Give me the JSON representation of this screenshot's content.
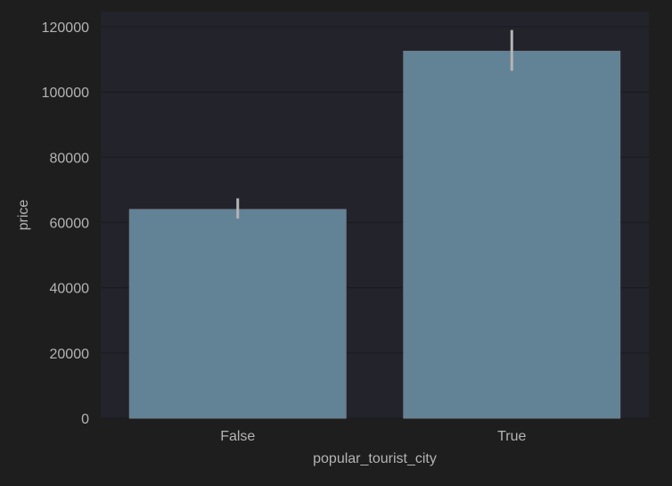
{
  "chart_data": {
    "type": "bar",
    "title": "",
    "xlabel": "popular_tourist_city",
    "ylabel": "price",
    "categories": [
      "False",
      "True"
    ],
    "values": [
      64000,
      112500
    ],
    "error_bars": [
      {
        "low": 61200,
        "high": 67400
      },
      {
        "low": 106500,
        "high": 119000
      }
    ],
    "yticks": [
      "0",
      "20000",
      "40000",
      "60000",
      "80000",
      "100000",
      "120000"
    ],
    "ylim": [
      0,
      125000
    ],
    "grid": true,
    "legend": "none",
    "colors": {
      "figure_background": "#1e1e1e",
      "plot_background": "#23232c",
      "bar": "#628296",
      "bar_edge": "#707e88",
      "error_bar": "#b4b4b4",
      "grid": "#1b1b1f",
      "text": "#b4b4b4"
    }
  }
}
